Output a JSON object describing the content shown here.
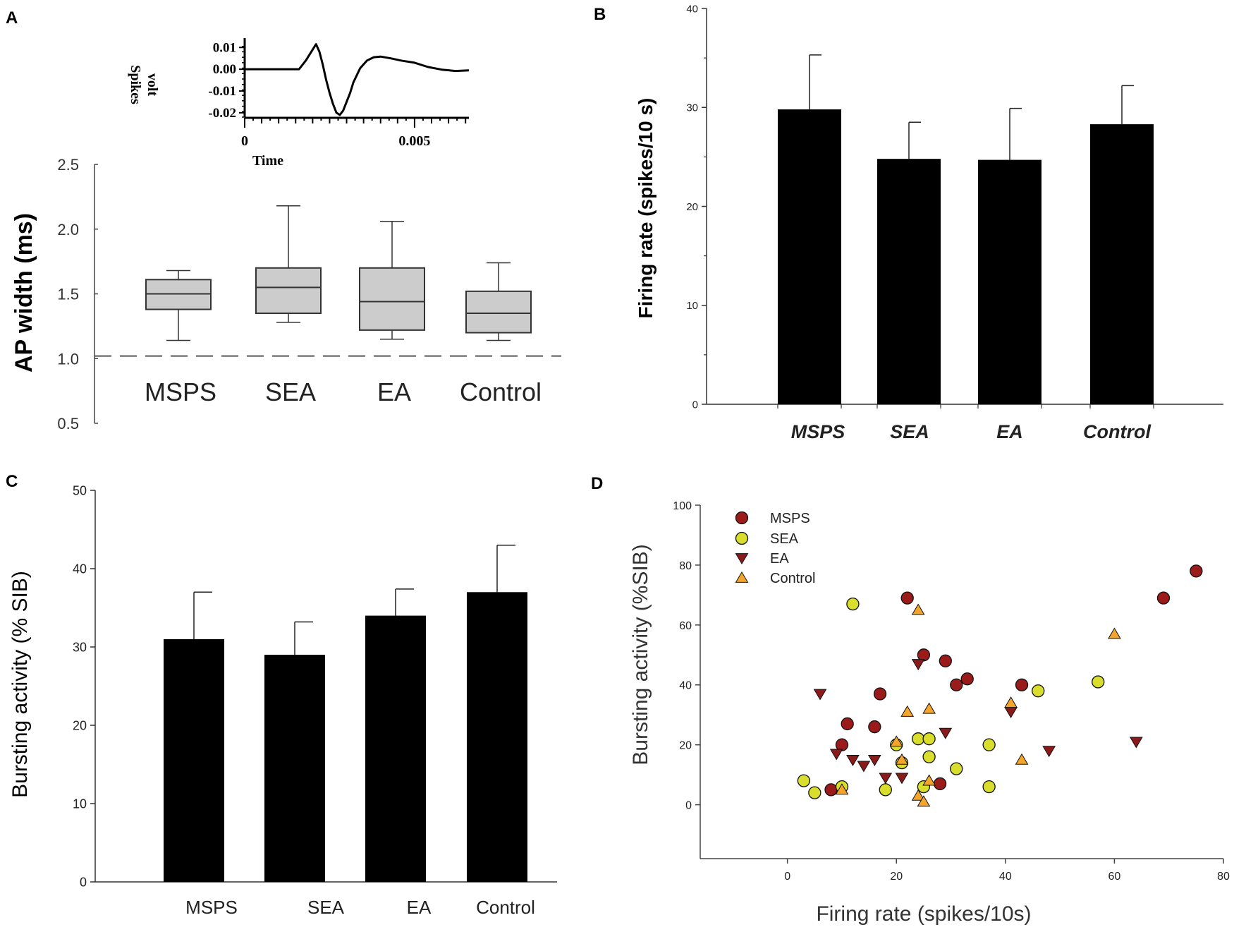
{
  "panels": {
    "a": {
      "label": "A",
      "inset": {
        "ylabel": "Spikes\nvolt",
        "xlabel": "Time",
        "yticks": [
          "0.01",
          "0.00",
          "-0.01",
          "-0.02"
        ],
        "xticks": [
          "0",
          "0.005"
        ]
      }
    },
    "b": {
      "label": "B"
    },
    "c": {
      "label": "C"
    },
    "d": {
      "label": "D"
    }
  },
  "chart_data": [
    {
      "id": "A",
      "type": "box",
      "ylabel": "AP width (ms)",
      "ylim": [
        0.5,
        2.5
      ],
      "yticks": [
        "0.5",
        "1.0",
        "1.5",
        "2.0",
        "2.5"
      ],
      "reference_line": 1.02,
      "categories": [
        "MSPS",
        "SEA",
        "EA",
        "Control"
      ],
      "boxes": [
        {
          "name": "MSPS",
          "whisker_low": 1.14,
          "q1": 1.38,
          "median": 1.5,
          "q3": 1.61,
          "whisker_high": 1.68
        },
        {
          "name": "SEA",
          "whisker_low": 1.28,
          "q1": 1.35,
          "median": 1.55,
          "q3": 1.7,
          "whisker_high": 2.18
        },
        {
          "name": "EA",
          "whisker_low": 1.15,
          "q1": 1.22,
          "median": 1.44,
          "q3": 1.7,
          "whisker_high": 2.06
        },
        {
          "name": "Control",
          "whisker_low": 1.14,
          "q1": 1.2,
          "median": 1.35,
          "q3": 1.52,
          "whisker_high": 1.74
        }
      ],
      "colors": {
        "box": "#cccccc"
      }
    },
    {
      "id": "A-inset",
      "type": "line",
      "xlabel": "Time",
      "ylabel": "Spikes volt",
      "xlim": [
        0,
        0.0066
      ],
      "ylim": [
        -0.022,
        0.013
      ],
      "x": [
        0,
        0.0016,
        0.0018,
        0.002,
        0.0021,
        0.0022,
        0.0023,
        0.0024,
        0.0025,
        0.0026,
        0.0027,
        0.0028,
        0.0029,
        0.003,
        0.0031,
        0.0032,
        0.0034,
        0.0036,
        0.0038,
        0.004,
        0.0043,
        0.0046,
        0.005,
        0.0054,
        0.0058,
        0.0062,
        0.0066
      ],
      "y": [
        0,
        0,
        0.004,
        0.009,
        0.0115,
        0.008,
        0.002,
        -0.005,
        -0.011,
        -0.016,
        -0.02,
        -0.021,
        -0.019,
        -0.015,
        -0.011,
        -0.006,
        0.0005,
        0.004,
        0.0055,
        0.0058,
        0.005,
        0.004,
        0.003,
        0.001,
        -0.0002,
        -0.0008,
        -0.0005
      ]
    },
    {
      "id": "B",
      "type": "bar",
      "ylabel": "Firing rate (spikes/10 s)",
      "ylim": [
        0,
        40
      ],
      "yticks": [
        "0",
        "10",
        "20",
        "30",
        "40"
      ],
      "categories": [
        "MSPS",
        "SEA",
        "EA",
        "Control"
      ],
      "values": [
        29.8,
        24.8,
        24.7,
        28.3
      ],
      "errors": [
        5.5,
        3.7,
        5.2,
        3.9
      ],
      "colors": {
        "bar": "#000000"
      }
    },
    {
      "id": "C",
      "type": "bar",
      "ylabel": "Bursting activity (% SIB)",
      "ylim": [
        0,
        50
      ],
      "yticks": [
        "0",
        "10",
        "20",
        "30",
        "40",
        "50"
      ],
      "categories": [
        "MSPS",
        "SEA",
        "EA",
        "Control"
      ],
      "values": [
        31,
        29,
        34,
        37
      ],
      "errors": [
        6,
        4.2,
        3.4,
        6
      ],
      "colors": {
        "bar": "#000000"
      }
    },
    {
      "id": "D",
      "type": "scatter",
      "xlabel": "Firing rate (spikes/10s)",
      "ylabel": "Bursting activity (%SIB)",
      "xlim": [
        -16,
        80
      ],
      "ylim": [
        -18,
        100
      ],
      "xticks": [
        "0",
        "20",
        "40",
        "60",
        "80"
      ],
      "yticks": [
        "0",
        "20",
        "40",
        "60",
        "80",
        "100"
      ],
      "series": [
        {
          "name": "MSPS",
          "marker": "circle",
          "color": "#9b1b1b",
          "points": [
            [
              22,
              69
            ],
            [
              69,
              69
            ],
            [
              75,
              78
            ],
            [
              25,
              50
            ],
            [
              29,
              48
            ],
            [
              31,
              40
            ],
            [
              33,
              42
            ],
            [
              43,
              40
            ],
            [
              17,
              37
            ],
            [
              11,
              27
            ],
            [
              16,
              26
            ],
            [
              10,
              20
            ],
            [
              8,
              5
            ],
            [
              28,
              7
            ]
          ]
        },
        {
          "name": "SEA",
          "marker": "circle",
          "color": "#d9dd2c",
          "points": [
            [
              12,
              67
            ],
            [
              57,
              41
            ],
            [
              46,
              38
            ],
            [
              3,
              8
            ],
            [
              5,
              4
            ],
            [
              10,
              6
            ],
            [
              18,
              5
            ],
            [
              20,
              20
            ],
            [
              21,
              14
            ],
            [
              24,
              22
            ],
            [
              26,
              22
            ],
            [
              26,
              16
            ],
            [
              25,
              6
            ],
            [
              31,
              12
            ],
            [
              37,
              20
            ],
            [
              37,
              6
            ]
          ]
        },
        {
          "name": "EA",
          "marker": "triangle-down",
          "color": "#8b1a1a",
          "points": [
            [
              24,
              47
            ],
            [
              6,
              37
            ],
            [
              41,
              31
            ],
            [
              64,
              21
            ],
            [
              9,
              17
            ],
            [
              29,
              24
            ],
            [
              12,
              15
            ],
            [
              14,
              13
            ],
            [
              16,
              15
            ],
            [
              18,
              9
            ],
            [
              21,
              9
            ],
            [
              48,
              18
            ]
          ]
        },
        {
          "name": "Control",
          "marker": "triangle-up",
          "color": "#f4a52a",
          "points": [
            [
              24,
              65
            ],
            [
              60,
              57
            ],
            [
              22,
              31
            ],
            [
              26,
              32
            ],
            [
              41,
              34
            ],
            [
              20,
              21
            ],
            [
              21,
              15
            ],
            [
              43,
              15
            ],
            [
              10,
              5
            ],
            [
              24,
              3
            ],
            [
              25,
              1
            ],
            [
              26,
              8
            ]
          ]
        }
      ]
    }
  ]
}
